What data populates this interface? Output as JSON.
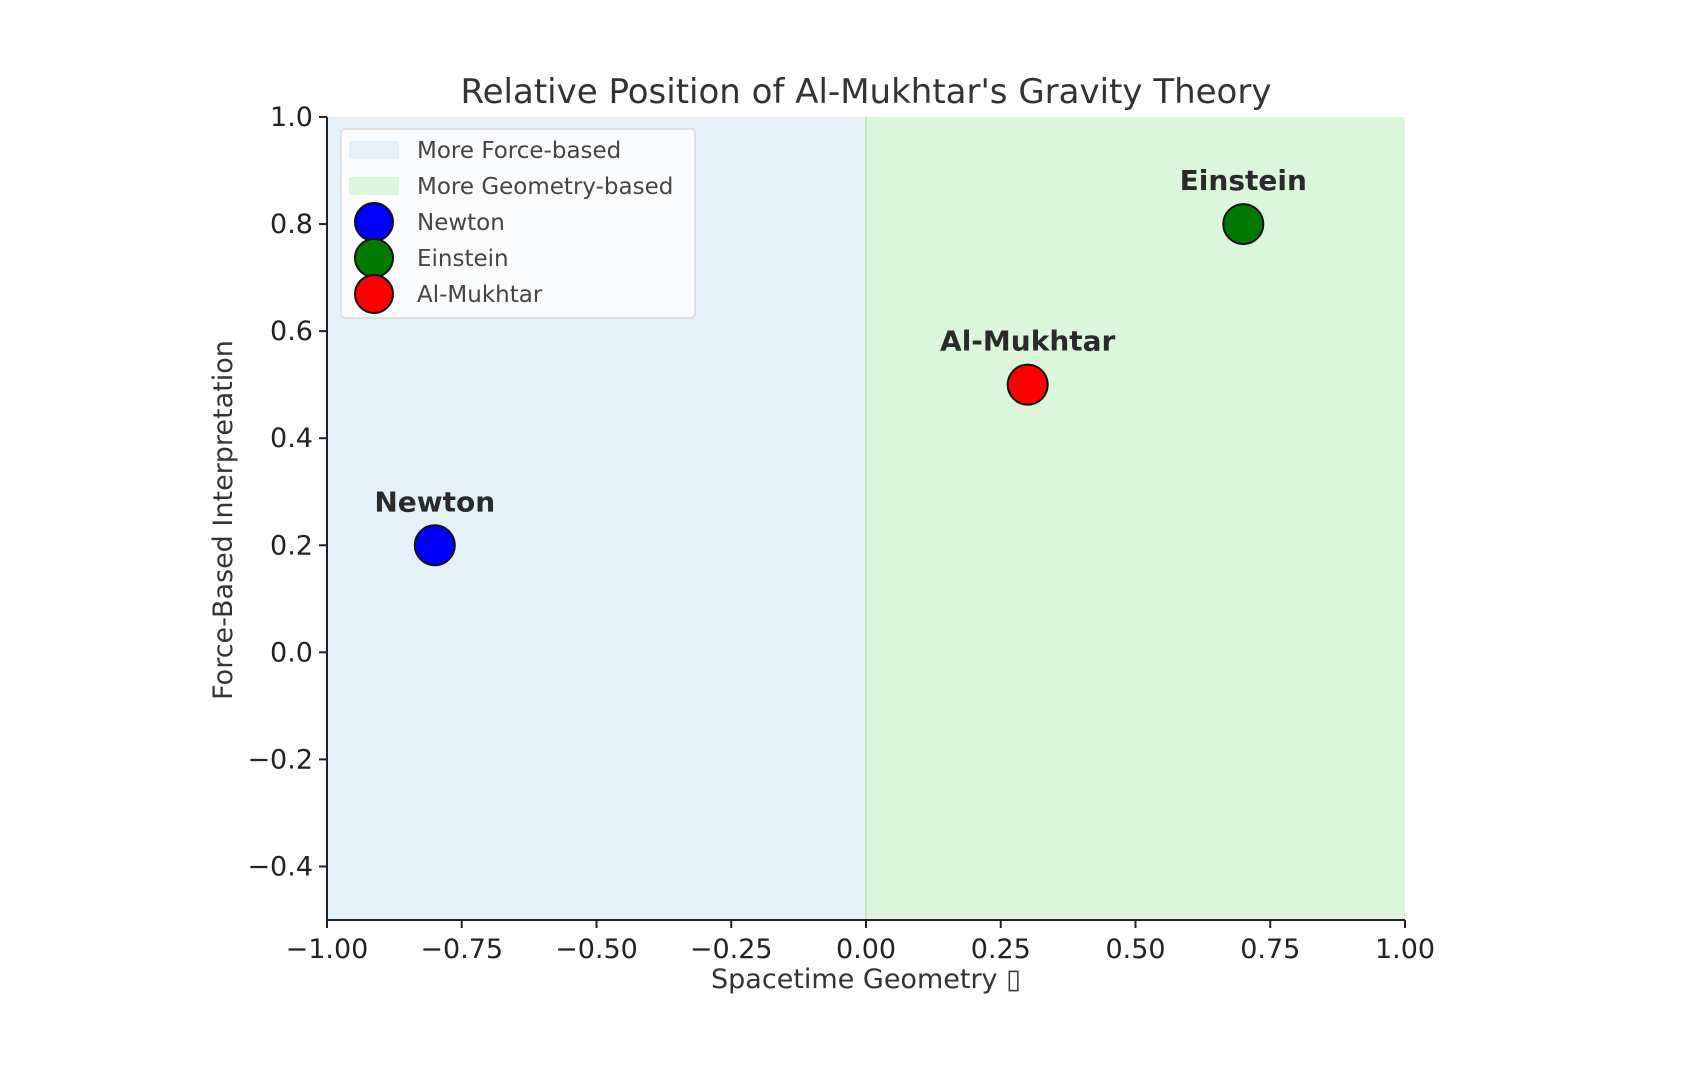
{
  "chart_data": {
    "type": "scatter",
    "title": "Relative Position of Al-Mukhtar's Gravity Theory",
    "xlabel": "Spacetime Geometry ▯",
    "ylabel": "Force-Based Interpretation",
    "xlim": [
      -1.0,
      1.0
    ],
    "ylim": [
      -0.5,
      1.0
    ],
    "x_ticks": [
      -1.0,
      -0.75,
      -0.5,
      -0.25,
      0.0,
      0.25,
      0.5,
      0.75,
      1.0
    ],
    "x_tick_labels": [
      "−1.00",
      "−0.75",
      "−0.50",
      "−0.25",
      "0.00",
      "0.25",
      "0.50",
      "0.75",
      "1.00"
    ],
    "y_ticks": [
      -0.4,
      -0.2,
      0.0,
      0.2,
      0.4,
      0.6,
      0.8,
      1.0
    ],
    "y_tick_labels": [
      "−0.4",
      "−0.2",
      "0.0",
      "0.2",
      "0.4",
      "0.6",
      "0.8",
      "1.0"
    ],
    "grid": false,
    "regions": [
      {
        "name": "More Force-based",
        "x_range": [
          -1.0,
          0.0
        ],
        "color": "#e4f1f8"
      },
      {
        "name": "More Geometry-based",
        "x_range": [
          0.0,
          1.0
        ],
        "color": "#dcf6dc"
      }
    ],
    "series": [
      {
        "name": "Newton",
        "x": -0.8,
        "y": 0.2,
        "color": "#0000ff",
        "label": "Newton"
      },
      {
        "name": "Einstein",
        "x": 0.7,
        "y": 0.8,
        "color": "#007a00",
        "label": "Einstein"
      },
      {
        "name": "Al-Mukhtar",
        "x": 0.3,
        "y": 0.5,
        "color": "#ff0000",
        "label": "Al-Mukhtar"
      }
    ],
    "legend": {
      "placement": "upper-left",
      "entries": [
        "More Force-based",
        "More Geometry-based",
        "Newton",
        "Einstein",
        "Al-Mukhtar"
      ]
    }
  }
}
